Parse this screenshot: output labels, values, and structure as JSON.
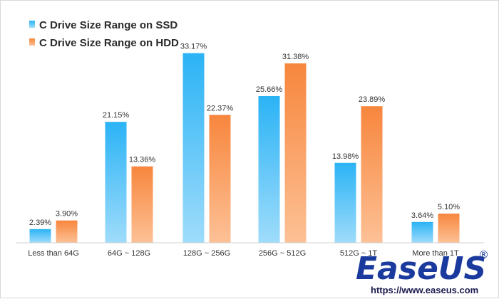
{
  "chart_data": {
    "type": "bar",
    "title": "",
    "xlabel": "",
    "ylabel": "",
    "ylim": [
      0,
      35
    ],
    "grid": false,
    "legend_position": "top-left",
    "categories": [
      "Less than 64G",
      "64G  ~ 128G",
      "128G ~ 256G",
      "256G ~ 512G",
      "512G ~ 1T",
      "More than 1T"
    ],
    "series": [
      {
        "name": "C Drive Size Range on SSD",
        "values": [
          2.39,
          21.15,
          33.17,
          25.66,
          13.98,
          3.64
        ],
        "labels": [
          "2.39%",
          "21.15%",
          "33.17%",
          "25.66%",
          "13.98%",
          "3.64%"
        ],
        "color_top": "#2bb3f5",
        "color_bottom": "#9fdcfb"
      },
      {
        "name": "C Drive Size Range on HDD",
        "values": [
          3.9,
          13.36,
          22.37,
          31.38,
          23.89,
          5.1
        ],
        "labels": [
          "3.90%",
          "13.36%",
          "22.37%",
          "31.38%",
          "23.89%",
          "5.10%"
        ],
        "color_top": "#f7863d",
        "color_bottom": "#fdc196"
      }
    ]
  },
  "brand": {
    "logo_text_part1": "Ease",
    "logo_text_part2": "US",
    "registered": "®",
    "url": "https://www.easeus.com",
    "color_primary": "#1a3a9e",
    "color_secondary": "#f7a326"
  }
}
